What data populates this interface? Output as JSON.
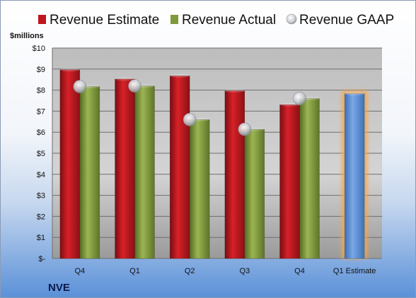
{
  "chart_data": {
    "type": "bar",
    "unit_label": "$millions",
    "company": "NVE",
    "categories": [
      "Q4",
      "Q1",
      "Q2",
      "Q3",
      "Q4",
      "Q1 Estimate"
    ],
    "y_ticks": [
      "$-",
      "$1",
      "$2",
      "$3",
      "$4",
      "$5",
      "$6",
      "$7",
      "$8",
      "$9",
      "$10"
    ],
    "ylim": [
      0,
      10
    ],
    "grid": true,
    "legend_position": "top",
    "series": [
      {
        "name": "Revenue Estimate",
        "type": "bar",
        "color": "#c0161e",
        "values": [
          8.97,
          8.53,
          8.68,
          7.97,
          7.31,
          null
        ]
      },
      {
        "name": "Revenue Actual",
        "type": "bar",
        "color": "#7f9a3a",
        "values": [
          8.17,
          8.2,
          6.6,
          6.14,
          7.6,
          null
        ]
      },
      {
        "name": "Revenue GAAP",
        "type": "scatter",
        "color": "#b8bcc4",
        "values": [
          8.17,
          8.2,
          6.6,
          6.14,
          7.6,
          null
        ]
      },
      {
        "name": "",
        "type": "bar",
        "color": "#5b8ed1",
        "highlight": "#f6a64a",
        "values": [
          null,
          null,
          null,
          null,
          null,
          7.83
        ]
      }
    ]
  }
}
